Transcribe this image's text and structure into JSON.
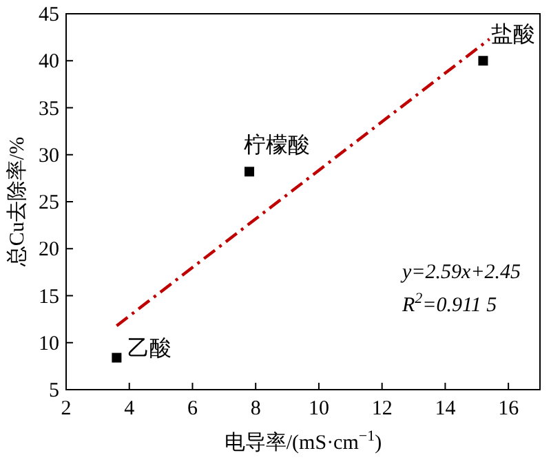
{
  "chart_data": {
    "type": "scatter",
    "xlabel": "电导率/(mS·cm$^{−1}$)",
    "ylabel": "总Cu去除率/%",
    "xlim": [
      2,
      17
    ],
    "xticks": [
      2,
      4,
      6,
      8,
      10,
      12,
      14,
      16
    ],
    "ylim": [
      5,
      45
    ],
    "yticks": [
      5,
      10,
      15,
      20,
      25,
      30,
      35,
      40,
      45
    ],
    "grid": false,
    "series": [
      {
        "marker": "square",
        "color": "#000000",
        "x": [
          3.6,
          7.8,
          15.2
        ],
        "values": [
          8.4,
          28.2,
          40
        ]
      },
      {
        "type": "line",
        "line_style": "dashed",
        "marker": "none",
        "color": "#c00000",
        "x": [
          3.6,
          15.4
        ],
        "values": [
          11.8,
          42.3
        ]
      }
    ],
    "annotations": [
      {
        "text": "乙酸",
        "x": 3.6,
        "y": 8.4
      },
      {
        "text": "柠檬酸",
        "x": 7.8,
        "y": 28.2
      },
      {
        "text": "盐酸",
        "x": 15.2,
        "y": 40
      },
      "y=2.59x+2.45",
      "R$^{2}$=0.911 5"
    ]
  }
}
